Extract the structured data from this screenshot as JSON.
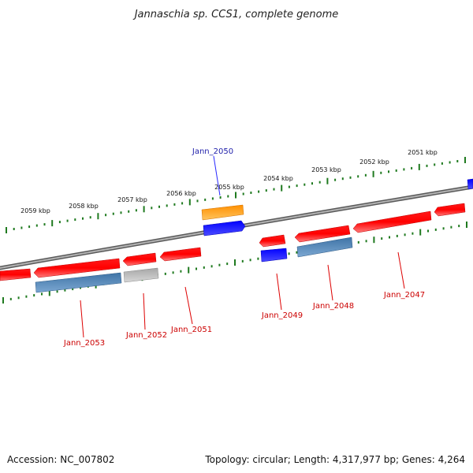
{
  "title": "Jannaschia sp. CCS1, complete genome",
  "footer": {
    "accession": "Accession: NC_007802",
    "summary": "Topology: circular; Length: 4,317,977 bp; Genes: 4,264"
  },
  "colors": {
    "backbone": "#8a8a8a",
    "tick": "#1f7a1f",
    "forward_gene": "#ff0000",
    "reverse_gene": "#ff0000",
    "cds_blue": "#0000ff",
    "cds_steel": "#4d86b8",
    "cds_orange": "#ff9900",
    "cds_gray": "#b5b5b5",
    "label_red": "#cc0000",
    "label_blue": "#1f1faa"
  },
  "scale_labels": [
    "2059 kbp",
    "2058 kbp",
    "2057 kbp",
    "2056 kbp",
    "2055 kbp",
    "2054 kbp",
    "2053 kbp",
    "2052 kbp",
    "2051 kbp"
  ],
  "gene_labels": {
    "jann_2050": "Jann_2050",
    "jann_2053": "Jann_2053",
    "jann_2052": "Jann_2052",
    "jann_2051": "Jann_2051",
    "jann_2049": "Jann_2049",
    "jann_2048": "Jann_2048",
    "jann_2047": "Jann_2047"
  }
}
